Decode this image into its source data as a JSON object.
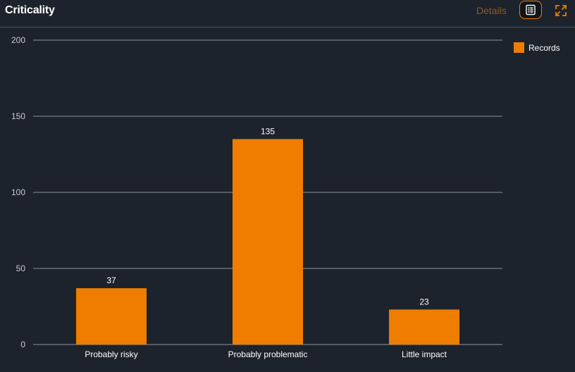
{
  "header": {
    "title": "Criticality",
    "details_label": "Details",
    "table_icon": "table-view-icon",
    "expand_icon": "fullscreen-icon"
  },
  "colors": {
    "bar": "#ef7d00",
    "background": "#1d232c",
    "grid": "#8b939c"
  },
  "chart_data": {
    "type": "bar",
    "categories": [
      "Probably risky",
      "Probably problematic",
      "Little impact"
    ],
    "series": [
      {
        "name": "Records",
        "values": [
          37,
          135,
          23
        ]
      }
    ],
    "ylim": [
      0,
      200
    ],
    "yticks": [
      0,
      50,
      100,
      150,
      200
    ],
    "title": "",
    "xlabel": "",
    "ylabel": "",
    "grid": true,
    "legend": "top-right"
  }
}
